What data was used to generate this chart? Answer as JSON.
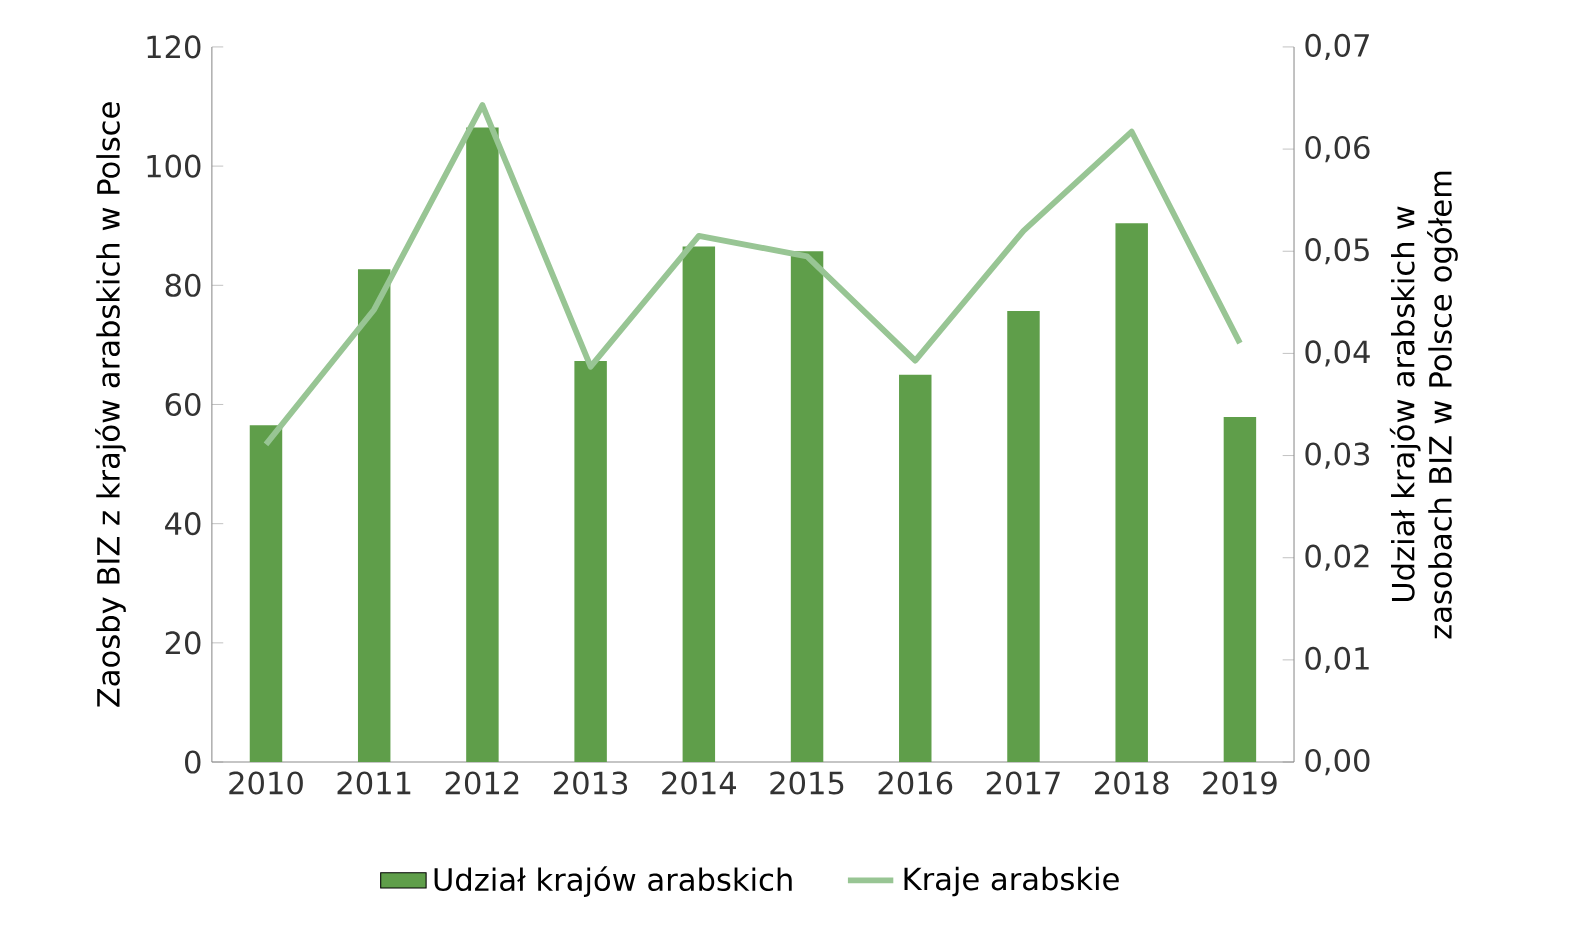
{
  "chart_data": {
    "type": "bar",
    "categories": [
      "2010",
      "2011",
      "2012",
      "2013",
      "2014",
      "2015",
      "2016",
      "2017",
      "2018",
      "2019"
    ],
    "ylabel": "Zaosby BIZ z krajów arabskich w Polsce",
    "y2label": "Udział krajów arabskich w zasobach BIZ w Polsce ogółem",
    "ylim": [
      0,
      120
    ],
    "yticks": [
      0,
      20,
      40,
      60,
      80,
      100,
      120
    ],
    "y2lim": [
      0,
      0.07
    ],
    "y2ticks": [
      {
        "value": 0,
        "label": "0,00"
      },
      {
        "value": 0.01,
        "label": "0,01"
      },
      {
        "value": 0.02,
        "label": "0,02"
      },
      {
        "value": 0.03,
        "label": "0,03"
      },
      {
        "value": 0.04,
        "label": "0,04"
      },
      {
        "value": 0.05,
        "label": "0,05"
      },
      {
        "value": 0.06,
        "label": "0,06"
      },
      {
        "value": 0.07,
        "label": "0,07"
      }
    ],
    "legend": "bottom",
    "series": [
      {
        "name": "Udział krajów arabskich",
        "color": "#5f9e4a",
        "values": [
          56.5,
          82.7,
          106.5,
          67.3,
          86.5,
          85.7,
          65,
          75.7,
          90.4,
          57.9
        ]
      },
      {
        "name": "Kraje arabskie",
        "type": "line",
        "axis": "y2",
        "color": "#98c594",
        "values": [
          0.0311,
          0.0443,
          0.0643,
          0.0387,
          0.0515,
          0.0495,
          0.0393,
          0.052,
          0.0617,
          0.041
        ]
      }
    ]
  }
}
